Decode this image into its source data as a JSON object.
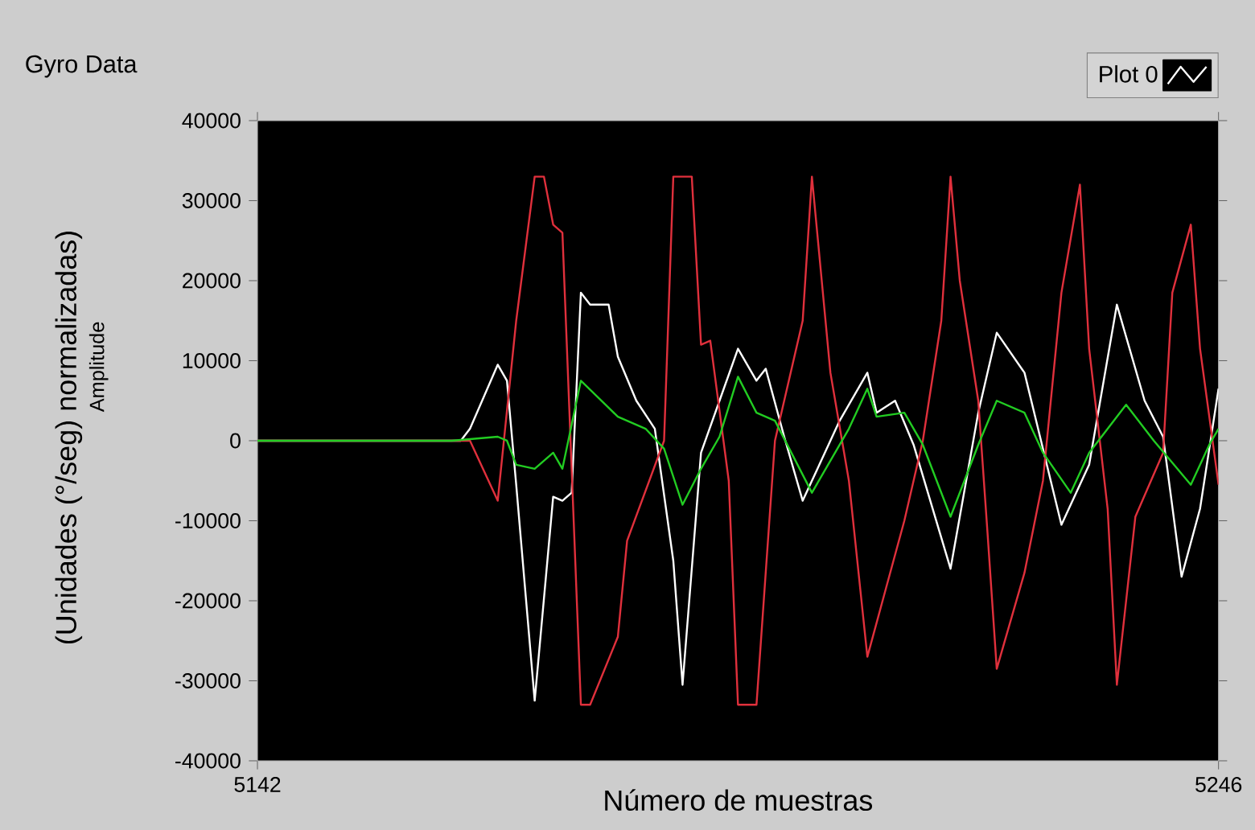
{
  "chart_data": {
    "type": "line",
    "title": "Gyro Data",
    "xlabel": "Número de muestras",
    "ylabel": "(Unidades (°/seg) normalizadas)",
    "annotations": [
      "Amplitude"
    ],
    "xlim": [
      5142,
      5246
    ],
    "xticks": [
      5142,
      5246
    ],
    "ylim": [
      -40000,
      40000
    ],
    "yticks": [
      -40000,
      -30000,
      -20000,
      -10000,
      0,
      10000,
      20000,
      30000,
      40000
    ],
    "legend": "top right",
    "grid": false,
    "series": [
      {
        "name": "Plot 0",
        "color": "#ffffff",
        "x": [
          5142,
          5164,
          5165,
          5168,
          5169,
          5170,
          5172,
          5174,
          5175,
          5176,
          5177,
          5178,
          5180,
          5181,
          5183,
          5185,
          5187,
          5188,
          5190,
          5192,
          5194,
          5196,
          5197,
          5199,
          5201,
          5205,
          5208,
          5209,
          5211,
          5213,
          5217,
          5220,
          5222,
          5225,
          5229,
          5232,
          5235,
          5238,
          5240,
          5242,
          5244,
          5246
        ],
        "values": [
          0,
          0,
          1500,
          9500,
          7500,
          -5500,
          -32500,
          -7000,
          -7500,
          -6500,
          18500,
          17000,
          17000,
          10500,
          5000,
          1500,
          -15000,
          -30500,
          -1500,
          5000,
          11500,
          7500,
          9000,
          500,
          -7500,
          2500,
          8500,
          3500,
          5000,
          -500,
          -16000,
          3500,
          13500,
          8500,
          -10500,
          -3000,
          17000,
          5000,
          500,
          -17000,
          -8500,
          6500
        ]
      },
      {
        "color": "#e0303c",
        "x": [
          5142,
          5165,
          5168,
          5170,
          5172,
          5173,
          5174,
          5175,
          5177,
          5178,
          5181,
          5182,
          5186,
          5187,
          5189,
          5190,
          5191,
          5193,
          5194,
          5196,
          5198,
          5201,
          5202,
          5204,
          5206,
          5208,
          5210,
          5212,
          5214,
          5216,
          5217,
          5218,
          5220,
          5221,
          5222,
          5225,
          5227,
          5229,
          5231,
          5232,
          5234,
          5235,
          5237,
          5240,
          5241,
          5243,
          5244,
          5246
        ],
        "values": [
          0,
          0,
          -7500,
          15000,
          33000,
          33000,
          27000,
          26000,
          -33000,
          -33000,
          -24500,
          -12500,
          0,
          33000,
          33000,
          12000,
          12500,
          -5000,
          -33000,
          -33000,
          0,
          15000,
          33000,
          8500,
          -5000,
          -27000,
          -18500,
          -10000,
          0,
          15000,
          33000,
          20000,
          5000,
          -11500,
          -28500,
          -16500,
          -5000,
          18500,
          32000,
          11500,
          -8500,
          -30500,
          -9500,
          -1500,
          18500,
          27000,
          11500,
          -5500
        ]
      },
      {
        "color": "#22cc22",
        "x": [
          5142,
          5163,
          5168,
          5169,
          5170,
          5172,
          5174,
          5175,
          5177,
          5181,
          5184,
          5186,
          5188,
          5190,
          5192,
          5194,
          5196,
          5198,
          5202,
          5206,
          5208,
          5209,
          5212,
          5214,
          5217,
          5220,
          5222,
          5225,
          5227,
          5230,
          5232,
          5236,
          5239,
          5243,
          5245,
          5246
        ],
        "values": [
          0,
          0,
          500,
          0,
          -3000,
          -3500,
          -1500,
          -3500,
          7500,
          3000,
          1500,
          -1000,
          -8000,
          -3500,
          500,
          8000,
          3500,
          2500,
          -6500,
          1500,
          6500,
          3000,
          3500,
          -500,
          -9500,
          -500,
          5000,
          3500,
          -1500,
          -6500,
          -1500,
          4500,
          0,
          -5500,
          -500,
          1500
        ]
      }
    ]
  }
}
